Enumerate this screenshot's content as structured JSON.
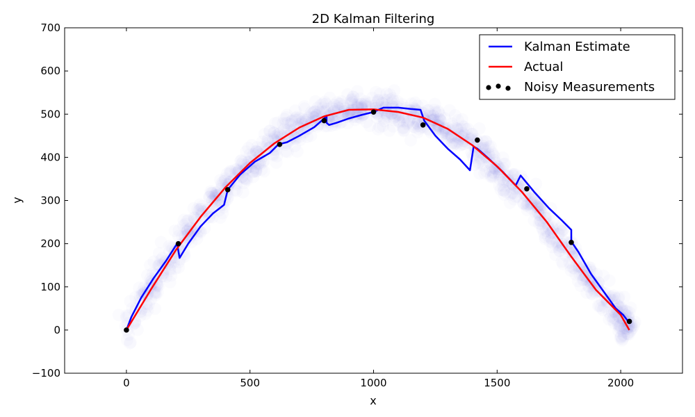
{
  "chart_data": {
    "type": "line",
    "title": "2D Kalman Filtering",
    "xlabel": "x",
    "ylabel": "y",
    "xlim": [
      -250,
      2250
    ],
    "ylim": [
      -100,
      700
    ],
    "xticks": [
      0,
      500,
      1000,
      1500,
      2000
    ],
    "yticks": [
      -100,
      0,
      100,
      200,
      300,
      400,
      500,
      600,
      700
    ],
    "grid": false,
    "legend_position": "top-right",
    "series": [
      {
        "name": "Kalman Estimate",
        "kind": "line",
        "color": "#0000ff",
        "points": [
          [
            0,
            0
          ],
          [
            20,
            30
          ],
          [
            60,
            75
          ],
          [
            110,
            120
          ],
          [
            160,
            160
          ],
          [
            205,
            200
          ],
          [
            215,
            167
          ],
          [
            250,
            200
          ],
          [
            300,
            240
          ],
          [
            350,
            270
          ],
          [
            395,
            290
          ],
          [
            410,
            325
          ],
          [
            460,
            360
          ],
          [
            520,
            390
          ],
          [
            580,
            410
          ],
          [
            615,
            430
          ],
          [
            650,
            435
          ],
          [
            700,
            450
          ],
          [
            760,
            470
          ],
          [
            810,
            495
          ],
          [
            810,
            480
          ],
          [
            820,
            475
          ],
          [
            850,
            480
          ],
          [
            900,
            490
          ],
          [
            950,
            498
          ],
          [
            1000,
            505
          ],
          [
            1040,
            515
          ],
          [
            1100,
            515
          ],
          [
            1150,
            512
          ],
          [
            1190,
            510
          ],
          [
            1205,
            485
          ],
          [
            1250,
            450
          ],
          [
            1300,
            420
          ],
          [
            1350,
            395
          ],
          [
            1390,
            370
          ],
          [
            1405,
            425
          ],
          [
            1420,
            420
          ],
          [
            1460,
            400
          ],
          [
            1520,
            368
          ],
          [
            1575,
            335
          ],
          [
            1595,
            358
          ],
          [
            1650,
            320
          ],
          [
            1710,
            282
          ],
          [
            1760,
            255
          ],
          [
            1800,
            232
          ],
          [
            1800,
            205
          ],
          [
            1830,
            180
          ],
          [
            1880,
            130
          ],
          [
            1930,
            90
          ],
          [
            1980,
            50
          ],
          [
            2010,
            35
          ],
          [
            2030,
            20
          ]
        ]
      },
      {
        "name": "Actual",
        "kind": "line",
        "color": "#ff0000",
        "points": [
          [
            0,
            0
          ],
          [
            100,
            95
          ],
          [
            200,
            185
          ],
          [
            300,
            262
          ],
          [
            400,
            330
          ],
          [
            500,
            387
          ],
          [
            600,
            433
          ],
          [
            700,
            469
          ],
          [
            800,
            495
          ],
          [
            900,
            510
          ],
          [
            1000,
            511
          ],
          [
            1100,
            505
          ],
          [
            1200,
            492
          ],
          [
            1300,
            466
          ],
          [
            1400,
            428
          ],
          [
            1500,
            379
          ],
          [
            1600,
            320
          ],
          [
            1700,
            251
          ],
          [
            1800,
            170
          ],
          [
            1900,
            93
          ],
          [
            2000,
            35
          ],
          [
            2035,
            0
          ]
        ]
      },
      {
        "name": "Noisy Measurements",
        "kind": "scatter",
        "color": "#000000",
        "points": [
          [
            0,
            0
          ],
          [
            210,
            200
          ],
          [
            410,
            325
          ],
          [
            620,
            430
          ],
          [
            800,
            485
          ],
          [
            1000,
            505
          ],
          [
            1200,
            475
          ],
          [
            1420,
            440
          ],
          [
            1620,
            327
          ],
          [
            1800,
            203
          ],
          [
            2035,
            20
          ]
        ]
      }
    ]
  }
}
